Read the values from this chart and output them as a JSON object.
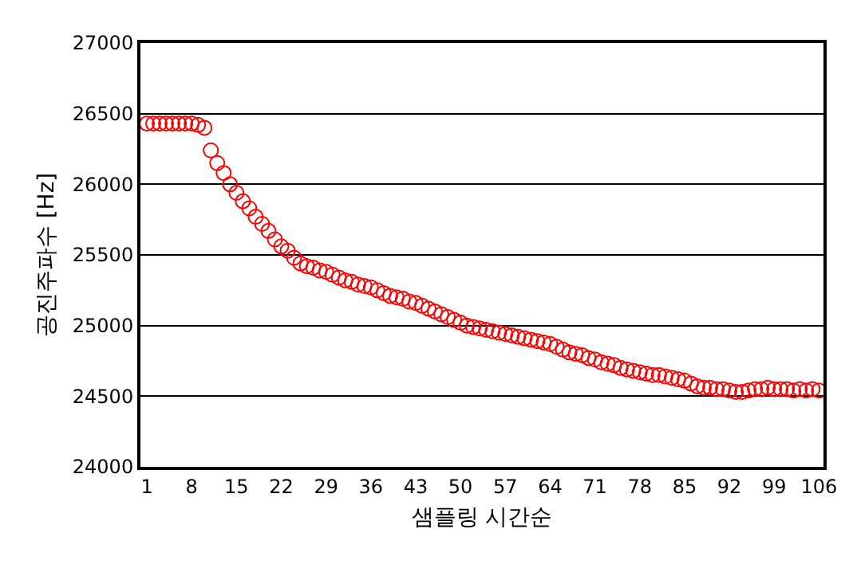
{
  "chart_data": {
    "type": "scatter",
    "xlabel": "샘플링 시간순",
    "ylabel": "공진주파수 [Hz]",
    "categories": [
      "1",
      null,
      null,
      null,
      null,
      null,
      null,
      "8",
      null,
      null,
      null,
      null,
      null,
      null,
      "15",
      null,
      null,
      null,
      null,
      null,
      null,
      "22",
      null,
      null,
      null,
      null,
      null,
      null,
      "29",
      null,
      null,
      null,
      null,
      null,
      null,
      "36",
      null,
      null,
      null,
      null,
      null,
      null,
      "43",
      null,
      null,
      null,
      null,
      null,
      null,
      "50",
      null,
      null,
      null,
      null,
      null,
      null,
      "57",
      null,
      null,
      null,
      null,
      null,
      null,
      "64",
      null,
      null,
      null,
      null,
      null,
      null,
      "71",
      null,
      null,
      null,
      null,
      null,
      null,
      "78",
      null,
      null,
      null,
      null,
      null,
      null,
      "85",
      null,
      null,
      null,
      null,
      null,
      null,
      "92",
      null,
      null,
      null,
      null,
      null,
      null,
      "99",
      null,
      null,
      null,
      null,
      null,
      null,
      "106"
    ],
    "series": [
      {
        "color": "#ff0000",
        "values": [
          26430,
          26430,
          26430,
          26430,
          26430,
          26430,
          26430,
          26430,
          26420,
          26400,
          26240,
          26150,
          26080,
          26000,
          25940,
          25880,
          25830,
          25770,
          25720,
          25670,
          25610,
          25560,
          25530,
          25480,
          25440,
          25420,
          25410,
          25390,
          25380,
          25360,
          25340,
          25320,
          25310,
          25290,
          25280,
          25270,
          25250,
          25230,
          25210,
          25200,
          25190,
          25170,
          25160,
          25140,
          25120,
          25100,
          25080,
          25060,
          25040,
          25020,
          25000,
          24990,
          24980,
          24970,
          24960,
          24950,
          24940,
          24930,
          24920,
          24910,
          24900,
          24890,
          24880,
          24870,
          24850,
          24830,
          24810,
          24800,
          24790,
          24770,
          24760,
          24740,
          24730,
          24720,
          24700,
          24690,
          24680,
          24670,
          24660,
          24650,
          24650,
          24640,
          24630,
          24620,
          24610,
          24590,
          24570,
          24560,
          24560,
          24550,
          24550,
          24540,
          24530,
          24530,
          24540,
          24550,
          24550,
          24560,
          24550,
          24550,
          24550,
          24540,
          24550,
          24540,
          24550,
          24540
        ]
      }
    ],
    "ylim": [
      24000,
      27000
    ],
    "yticks": [
      24000,
      24500,
      25000,
      25500,
      26000,
      26500,
      27000
    ],
    "grid": "y",
    "marker": "circle"
  }
}
